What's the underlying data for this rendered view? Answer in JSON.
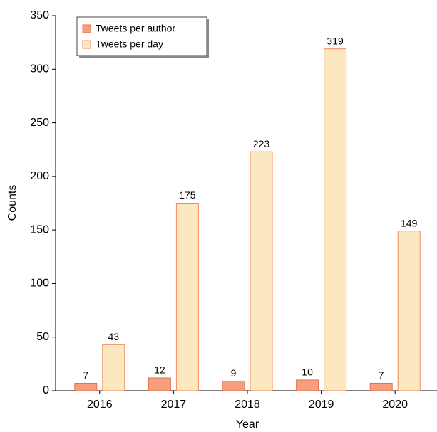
{
  "chart_data": {
    "type": "bar",
    "xlabel": "Year",
    "ylabel": "Counts",
    "categories": [
      "2016",
      "2017",
      "2018",
      "2019",
      "2020"
    ],
    "series": [
      {
        "name": "Tweets per author",
        "color": "#f4a07f",
        "edgecolor": "#e8704a",
        "values": [
          7,
          12,
          9,
          10,
          7
        ]
      },
      {
        "name": "Tweets per day",
        "color": "#fbe7c0",
        "edgecolor": "#f08a5a",
        "values": [
          43,
          175,
          223,
          319,
          149
        ]
      }
    ],
    "ylim": [
      0,
      350
    ],
    "yticks": [
      0,
      50,
      100,
      150,
      200,
      250,
      300,
      350
    ],
    "legend": "upper left",
    "grid": false
  }
}
